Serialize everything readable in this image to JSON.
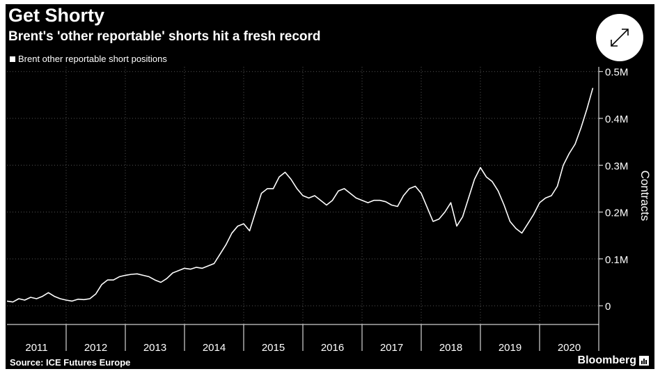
{
  "header": {
    "title": "Get Shorty",
    "subtitle": "Brent's 'other reportable' shorts hit a fresh record"
  },
  "footer": {
    "source": "Source: ICE Futures Europe",
    "brand": "Bloomberg"
  },
  "colors": {
    "background": "#000000",
    "line": "#ffffff",
    "grid": "#555555"
  },
  "icons": {
    "expand": "expand-diagonal-arrows-icon",
    "brand": "bar-chart-icon"
  },
  "chart_data": {
    "type": "line",
    "title": "Get Shorty",
    "subtitle": "Brent's 'other reportable' shorts hit a fresh record",
    "xlabel": "",
    "ylabel": "Contracts",
    "ylim": [
      -40000,
      510000
    ],
    "xlim": [
      2011.0,
      2021.0
    ],
    "grid": true,
    "legend_position": "top-left",
    "x_ticks": [
      "2011",
      "2012",
      "2013",
      "2014",
      "2015",
      "2016",
      "2017",
      "2018",
      "2019",
      "2020"
    ],
    "y_ticks": [
      {
        "value": 0,
        "label": "0"
      },
      {
        "value": 100000,
        "label": "0.1M"
      },
      {
        "value": 200000,
        "label": "0.2M"
      },
      {
        "value": 300000,
        "label": "0.3M"
      },
      {
        "value": 400000,
        "label": "0.4M"
      },
      {
        "value": 500000,
        "label": "0.5M"
      }
    ],
    "series": [
      {
        "name": "Brent other reportable short positions",
        "x": [
          2011.0,
          2011.1,
          2011.2,
          2011.3,
          2011.4,
          2011.5,
          2011.6,
          2011.7,
          2011.8,
          2011.9,
          2012.0,
          2012.1,
          2012.2,
          2012.3,
          2012.4,
          2012.5,
          2012.6,
          2012.7,
          2012.8,
          2012.9,
          2013.0,
          2013.1,
          2013.2,
          2013.3,
          2013.4,
          2013.5,
          2013.6,
          2013.7,
          2013.8,
          2013.9,
          2014.0,
          2014.1,
          2014.2,
          2014.3,
          2014.4,
          2014.5,
          2014.6,
          2014.7,
          2014.8,
          2014.9,
          2015.0,
          2015.1,
          2015.2,
          2015.3,
          2015.4,
          2015.5,
          2015.6,
          2015.7,
          2015.8,
          2015.9,
          2016.0,
          2016.1,
          2016.2,
          2016.3,
          2016.4,
          2016.5,
          2016.6,
          2016.7,
          2016.8,
          2016.9,
          2017.0,
          2017.1,
          2017.2,
          2017.3,
          2017.4,
          2017.5,
          2017.6,
          2017.7,
          2017.8,
          2017.9,
          2018.0,
          2018.1,
          2018.2,
          2018.3,
          2018.4,
          2018.5,
          2018.6,
          2018.7,
          2018.8,
          2018.9,
          2019.0,
          2019.1,
          2019.2,
          2019.3,
          2019.4,
          2019.5,
          2019.6,
          2019.7,
          2019.8,
          2019.9,
          2020.0,
          2020.1,
          2020.2,
          2020.3,
          2020.4,
          2020.5,
          2020.6,
          2020.7,
          2020.8,
          2020.9
        ],
        "values": [
          10000,
          8000,
          15000,
          12000,
          18000,
          15000,
          20000,
          28000,
          20000,
          15000,
          12000,
          10000,
          14000,
          13000,
          15000,
          25000,
          45000,
          55000,
          55000,
          62000,
          65000,
          67000,
          68000,
          65000,
          62000,
          55000,
          50000,
          58000,
          70000,
          75000,
          80000,
          78000,
          82000,
          80000,
          85000,
          90000,
          110000,
          130000,
          155000,
          170000,
          175000,
          160000,
          200000,
          240000,
          250000,
          250000,
          275000,
          285000,
          270000,
          250000,
          235000,
          230000,
          235000,
          225000,
          215000,
          225000,
          245000,
          250000,
          240000,
          230000,
          225000,
          220000,
          225000,
          225000,
          222000,
          215000,
          212000,
          235000,
          250000,
          255000,
          240000,
          210000,
          180000,
          185000,
          200000,
          220000,
          170000,
          190000,
          230000,
          270000,
          295000,
          275000,
          265000,
          245000,
          215000,
          180000,
          165000,
          155000,
          175000,
          195000,
          220000,
          230000,
          235000,
          255000,
          300000,
          325000,
          345000,
          380000,
          420000,
          465000
        ]
      }
    ]
  }
}
